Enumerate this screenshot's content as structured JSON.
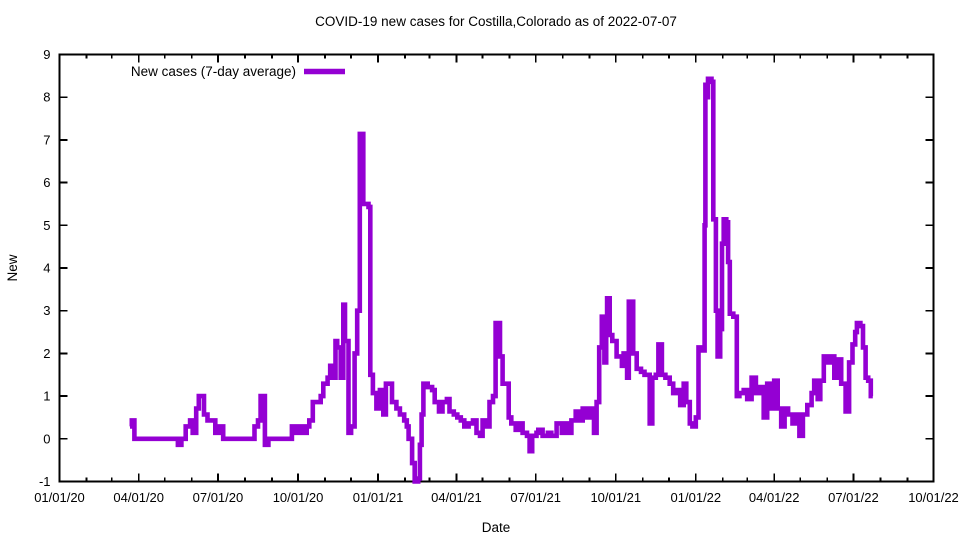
{
  "page": {
    "background": "#ffffff",
    "text_color": "#000000"
  },
  "chart_data": {
    "type": "line",
    "title": "COVID-19 new cases for Costilla,Colorado as of 2022-07-07",
    "xlabel": "Date",
    "ylabel": "New",
    "grid": false,
    "interpolation": "step-after",
    "legend": {
      "label": "New cases (7-day average)",
      "position": "top-left-inside"
    },
    "line_color": "#9400D3",
    "axis_color": "#000000",
    "x_axis": {
      "min": "2020-01-01",
      "max": "2022-10-01",
      "major_tick_labels": [
        "01/01/20",
        "04/01/20",
        "07/01/20",
        "10/01/20",
        "01/01/21",
        "04/01/21",
        "07/01/21",
        "10/01/21",
        "01/01/22",
        "04/01/22",
        "07/01/22",
        "10/01/22"
      ],
      "minor_tick_interval": "1 month"
    },
    "y_axis": {
      "min": -1,
      "max": 9,
      "tick_step": 1,
      "tick_labels": [
        "-1",
        "0",
        "1",
        "2",
        "3",
        "4",
        "5",
        "6",
        "7",
        "8",
        "9"
      ]
    },
    "series": [
      {
        "name": "New cases (7-day average)",
        "color": "#9400D3",
        "points": [
          [
            "2020-03-22",
            0.29
          ],
          [
            "2020-03-24",
            0.43
          ],
          [
            "2020-03-27",
            0
          ],
          [
            "2020-05-13",
            0
          ],
          [
            "2020-05-16",
            -0.14
          ],
          [
            "2020-05-20",
            0
          ],
          [
            "2020-05-25",
            0.29
          ],
          [
            "2020-05-30",
            0.43
          ],
          [
            "2020-06-02",
            0.14
          ],
          [
            "2020-06-06",
            0.71
          ],
          [
            "2020-06-09",
            1.0
          ],
          [
            "2020-06-15",
            0.57
          ],
          [
            "2020-06-19",
            0.43
          ],
          [
            "2020-06-28",
            0.14
          ],
          [
            "2020-07-02",
            0.29
          ],
          [
            "2020-07-07",
            0
          ],
          [
            "2020-08-09",
            0
          ],
          [
            "2020-08-12",
            0.29
          ],
          [
            "2020-08-16",
            0.43
          ],
          [
            "2020-08-19",
            1.0
          ],
          [
            "2020-08-24",
            -0.14
          ],
          [
            "2020-08-28",
            0
          ],
          [
            "2020-09-20",
            0
          ],
          [
            "2020-09-24",
            0.29
          ],
          [
            "2020-09-28",
            0.14
          ],
          [
            "2020-10-02",
            0.29
          ],
          [
            "2020-10-06",
            0.14
          ],
          [
            "2020-10-11",
            0.29
          ],
          [
            "2020-10-14",
            0.43
          ],
          [
            "2020-10-18",
            0.86
          ],
          [
            "2020-10-27",
            1.0
          ],
          [
            "2020-10-30",
            1.29
          ],
          [
            "2020-11-04",
            1.43
          ],
          [
            "2020-11-07",
            1.71
          ],
          [
            "2020-11-11",
            1.43
          ],
          [
            "2020-11-13",
            2.29
          ],
          [
            "2020-11-15",
            2.14
          ],
          [
            "2020-11-19",
            1.43
          ],
          [
            "2020-11-22",
            3.14
          ],
          [
            "2020-11-24",
            2.29
          ],
          [
            "2020-11-28",
            0.14
          ],
          [
            "2020-12-01",
            0.29
          ],
          [
            "2020-12-05",
            2.0
          ],
          [
            "2020-12-08",
            3.0
          ],
          [
            "2020-12-11",
            7.14
          ],
          [
            "2020-12-15",
            5.5
          ],
          [
            "2020-12-21",
            5.43
          ],
          [
            "2020-12-23",
            1.5
          ],
          [
            "2020-12-26",
            1.07
          ],
          [
            "2020-12-30",
            0.71
          ],
          [
            "2021-01-03",
            1.14
          ],
          [
            "2021-01-07",
            0.57
          ],
          [
            "2021-01-10",
            1.29
          ],
          [
            "2021-01-17",
            0.86
          ],
          [
            "2021-01-22",
            0.71
          ],
          [
            "2021-01-26",
            0.57
          ],
          [
            "2021-01-31",
            0.43
          ],
          [
            "2021-02-03",
            0.29
          ],
          [
            "2021-02-05",
            0
          ],
          [
            "2021-02-09",
            -0.57
          ],
          [
            "2021-02-12",
            -1.0
          ],
          [
            "2021-02-16",
            -0.93
          ],
          [
            "2021-02-18",
            -0.14
          ],
          [
            "2021-02-20",
            0.57
          ],
          [
            "2021-02-22",
            1.29
          ],
          [
            "2021-02-27",
            1.21
          ],
          [
            "2021-03-04",
            1.14
          ],
          [
            "2021-03-07",
            0.86
          ],
          [
            "2021-03-12",
            0.64
          ],
          [
            "2021-03-16",
            0.86
          ],
          [
            "2021-03-21",
            0.93
          ],
          [
            "2021-03-24",
            0.64
          ],
          [
            "2021-03-29",
            0.57
          ],
          [
            "2021-04-02",
            0.5
          ],
          [
            "2021-04-06",
            0.43
          ],
          [
            "2021-04-10",
            0.29
          ],
          [
            "2021-04-15",
            0.36
          ],
          [
            "2021-04-20",
            0.43
          ],
          [
            "2021-04-24",
            0.14
          ],
          [
            "2021-04-28",
            0.07
          ],
          [
            "2021-05-01",
            0.43
          ],
          [
            "2021-05-06",
            0.29
          ],
          [
            "2021-05-09",
            0.86
          ],
          [
            "2021-05-13",
            1.0
          ],
          [
            "2021-05-16",
            2.71
          ],
          [
            "2021-05-21",
            1.93
          ],
          [
            "2021-05-24",
            1.29
          ],
          [
            "2021-05-31",
            0.5
          ],
          [
            "2021-06-03",
            0.36
          ],
          [
            "2021-06-08",
            0.21
          ],
          [
            "2021-06-11",
            0.36
          ],
          [
            "2021-06-16",
            0.14
          ],
          [
            "2021-06-21",
            0.07
          ],
          [
            "2021-06-24",
            -0.29
          ],
          [
            "2021-06-27",
            0.07
          ],
          [
            "2021-07-02",
            0.14
          ],
          [
            "2021-07-04",
            0.21
          ],
          [
            "2021-07-09",
            0.07
          ],
          [
            "2021-07-15",
            0.14
          ],
          [
            "2021-07-19",
            0.07
          ],
          [
            "2021-07-25",
            0.36
          ],
          [
            "2021-07-31",
            0.14
          ],
          [
            "2021-08-03",
            0.36
          ],
          [
            "2021-08-08",
            0.14
          ],
          [
            "2021-08-11",
            0.43
          ],
          [
            "2021-08-16",
            0.64
          ],
          [
            "2021-08-20",
            0.43
          ],
          [
            "2021-08-24",
            0.71
          ],
          [
            "2021-08-28",
            0.5
          ],
          [
            "2021-09-01",
            0.71
          ],
          [
            "2021-09-06",
            0.14
          ],
          [
            "2021-09-09",
            0.86
          ],
          [
            "2021-09-12",
            2.14
          ],
          [
            "2021-09-15",
            2.86
          ],
          [
            "2021-09-18",
            1.79
          ],
          [
            "2021-09-20",
            2.5
          ],
          [
            "2021-09-21",
            3.29
          ],
          [
            "2021-09-24",
            2.43
          ],
          [
            "2021-09-27",
            2.29
          ],
          [
            "2021-10-02",
            1.93
          ],
          [
            "2021-10-08",
            1.71
          ],
          [
            "2021-10-10",
            2.0
          ],
          [
            "2021-10-14",
            1.43
          ],
          [
            "2021-10-16",
            3.21
          ],
          [
            "2021-10-21",
            2.0
          ],
          [
            "2021-10-25",
            1.64
          ],
          [
            "2021-10-30",
            1.57
          ],
          [
            "2021-11-03",
            1.5
          ],
          [
            "2021-11-09",
            0.36
          ],
          [
            "2021-11-12",
            1.43
          ],
          [
            "2021-11-16",
            1.5
          ],
          [
            "2021-11-19",
            2.21
          ],
          [
            "2021-11-23",
            1.5
          ],
          [
            "2021-11-27",
            1.43
          ],
          [
            "2021-12-02",
            1.29
          ],
          [
            "2021-12-06",
            1.07
          ],
          [
            "2021-12-11",
            1.14
          ],
          [
            "2021-12-14",
            0.79
          ],
          [
            "2021-12-18",
            1.29
          ],
          [
            "2021-12-21",
            0.86
          ],
          [
            "2021-12-25",
            0.36
          ],
          [
            "2021-12-28",
            0.29
          ],
          [
            "2022-01-01",
            0.5
          ],
          [
            "2022-01-04",
            2.14
          ],
          [
            "2022-01-09",
            2.07
          ],
          [
            "2022-01-11",
            5.0
          ],
          [
            "2022-01-12",
            8.29
          ],
          [
            "2022-01-14",
            8.0
          ],
          [
            "2022-01-15",
            8.43
          ],
          [
            "2022-01-19",
            8.36
          ],
          [
            "2022-01-21",
            5.14
          ],
          [
            "2022-01-24",
            3.0
          ],
          [
            "2022-01-26",
            1.93
          ],
          [
            "2022-01-29",
            2.57
          ],
          [
            "2022-01-31",
            4.57
          ],
          [
            "2022-02-02",
            5.14
          ],
          [
            "2022-02-05",
            5.07
          ],
          [
            "2022-02-07",
            4.14
          ],
          [
            "2022-02-09",
            2.93
          ],
          [
            "2022-02-13",
            2.86
          ],
          [
            "2022-02-17",
            1.0
          ],
          [
            "2022-02-20",
            1.07
          ],
          [
            "2022-02-25",
            1.14
          ],
          [
            "2022-03-01",
            0.93
          ],
          [
            "2022-03-06",
            1.43
          ],
          [
            "2022-03-11",
            1.07
          ],
          [
            "2022-03-15",
            1.21
          ],
          [
            "2022-03-20",
            0.5
          ],
          [
            "2022-03-24",
            1.29
          ],
          [
            "2022-03-29",
            0.71
          ],
          [
            "2022-04-01",
            1.36
          ],
          [
            "2022-04-05",
            0.71
          ],
          [
            "2022-04-09",
            0.29
          ],
          [
            "2022-04-13",
            0.71
          ],
          [
            "2022-04-17",
            0.57
          ],
          [
            "2022-04-22",
            0.36
          ],
          [
            "2022-04-26",
            0.57
          ],
          [
            "2022-04-30",
            0.07
          ],
          [
            "2022-05-04",
            0.57
          ],
          [
            "2022-05-09",
            0.79
          ],
          [
            "2022-05-14",
            1.07
          ],
          [
            "2022-05-17",
            1.36
          ],
          [
            "2022-05-21",
            0.93
          ],
          [
            "2022-05-24",
            1.36
          ],
          [
            "2022-05-28",
            1.93
          ],
          [
            "2022-06-01",
            1.79
          ],
          [
            "2022-06-05",
            1.93
          ],
          [
            "2022-06-09",
            1.43
          ],
          [
            "2022-06-13",
            1.86
          ],
          [
            "2022-06-17",
            1.29
          ],
          [
            "2022-06-22",
            0.64
          ],
          [
            "2022-06-26",
            1.79
          ],
          [
            "2022-06-30",
            2.21
          ],
          [
            "2022-07-03",
            2.5
          ],
          [
            "2022-07-05",
            2.71
          ],
          [
            "2022-07-09",
            2.64
          ],
          [
            "2022-07-12",
            2.14
          ],
          [
            "2022-07-15",
            1.43
          ],
          [
            "2022-07-18",
            1.36
          ],
          [
            "2022-07-21",
            1.0
          ]
        ]
      }
    ]
  }
}
